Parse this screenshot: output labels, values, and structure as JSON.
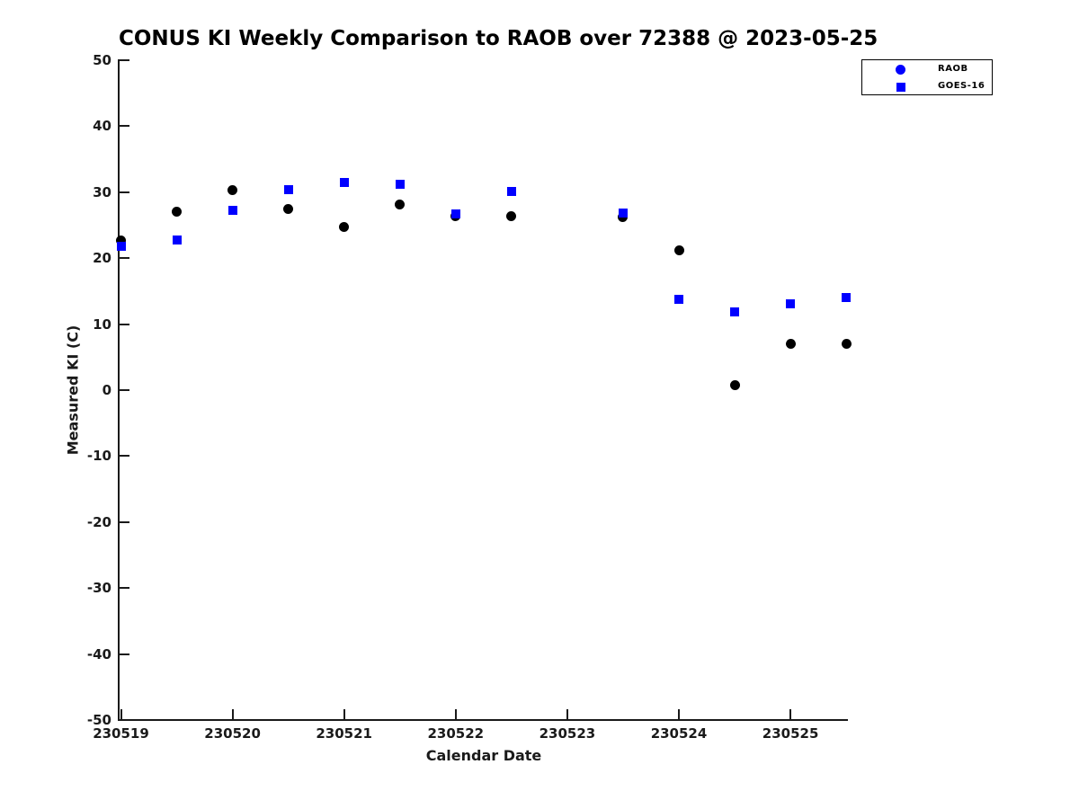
{
  "chart_data": {
    "type": "scatter",
    "title": "CONUS KI Weekly Comparison to RAOB over 72388 @ 2023-05-25",
    "xlabel": "Calendar Date",
    "ylabel": "Measured KI (C)",
    "ylim": [
      -50,
      50
    ],
    "yticks": [
      50,
      40,
      30,
      20,
      10,
      0,
      -10,
      -20,
      -30,
      -40,
      -50
    ],
    "xtick_labels": [
      "230519",
      "230520",
      "230521",
      "230522",
      "230523",
      "230524",
      "230525"
    ],
    "xtick_positions_days": [
      0,
      1,
      2,
      3,
      4,
      5,
      6
    ],
    "xlim_days": [
      0,
      6.52
    ],
    "grid": false,
    "note": "x unit = days since 230519; points sampled at 00Z and 12Z; 230523.0 missing for both series",
    "legend": {
      "position": "top-right",
      "entries": [
        {
          "label": "RAOB",
          "marker": "circle",
          "color": "#0000ff"
        },
        {
          "label": "GOES-16",
          "marker": "square",
          "color": "#0000ff"
        }
      ]
    },
    "series": [
      {
        "name": "RAOB",
        "marker": "circle",
        "color": "#000000",
        "marker_size_px": 11,
        "points": [
          [
            0,
            22.7
          ],
          [
            0.5,
            27.1
          ],
          [
            1,
            30.3
          ],
          [
            1.5,
            27.5
          ],
          [
            2,
            24.7
          ],
          [
            2.5,
            28.1
          ],
          [
            3,
            26.3
          ],
          [
            3.5,
            26.4
          ],
          [
            4.5,
            26.2
          ],
          [
            5,
            21.2
          ],
          [
            5.5,
            0.8
          ],
          [
            6,
            7.0
          ],
          [
            6.5,
            7.0
          ]
        ]
      },
      {
        "name": "GOES-16",
        "marker": "square",
        "color": "#0000ff",
        "marker_size_px": 10,
        "points": [
          [
            0,
            21.8
          ],
          [
            0.5,
            22.7
          ],
          [
            1,
            27.2
          ],
          [
            1.5,
            30.4
          ],
          [
            2,
            31.5
          ],
          [
            2.5,
            31.2
          ],
          [
            3,
            26.7
          ],
          [
            3.5,
            30.1
          ],
          [
            4.5,
            26.9
          ],
          [
            5,
            13.8
          ],
          [
            5.5,
            11.9
          ],
          [
            6,
            13.1
          ],
          [
            6.5,
            14.1
          ]
        ]
      }
    ]
  }
}
